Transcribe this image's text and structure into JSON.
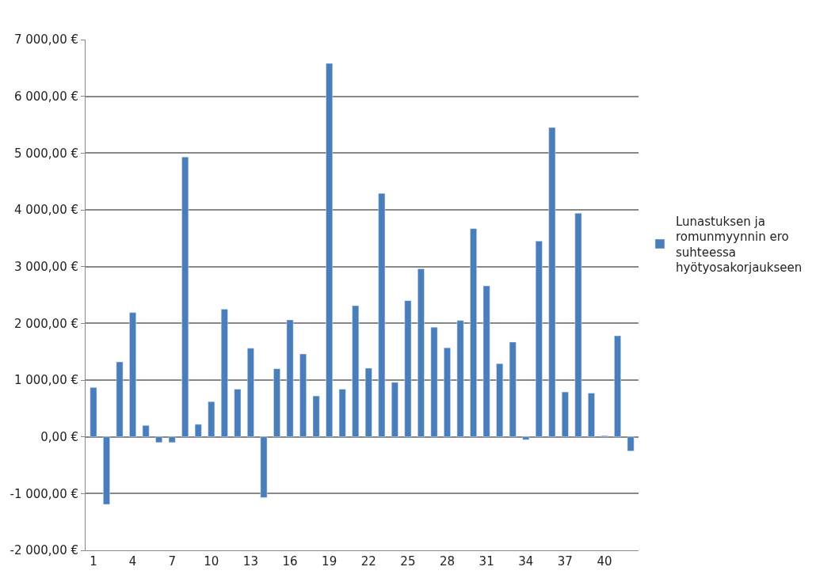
{
  "chart_data": {
    "type": "bar",
    "categories": [
      "1",
      null,
      null,
      "4",
      null,
      null,
      "7",
      null,
      null,
      "10",
      null,
      null,
      "13",
      null,
      null,
      "16",
      null,
      null,
      "19",
      null,
      null,
      "22",
      null,
      null,
      "25",
      null,
      null,
      "28",
      null,
      null,
      "31",
      null,
      null,
      "34",
      null,
      null,
      "37",
      null,
      null,
      "40",
      null,
      null
    ],
    "series": [
      {
        "name": "Lunastuksen ja romunmyynnin ero suhteessa hyötyosakorjaukseen",
        "color": "#4a7ebb",
        "values": [
          870,
          -1190,
          1320,
          2190,
          200,
          -100,
          -100,
          4930,
          220,
          620,
          2250,
          840,
          1560,
          -1070,
          1200,
          2060,
          1460,
          720,
          6580,
          840,
          2310,
          1210,
          4290,
          960,
          2400,
          2960,
          1930,
          1570,
          2050,
          3670,
          2660,
          1290,
          1670,
          -50,
          3450,
          5450,
          790,
          3940,
          770,
          20,
          1780,
          -250
        ]
      }
    ],
    "ylim": [
      -2000,
      7000
    ],
    "yticks": [
      {
        "value": -2000,
        "label": "-2 000,00 €"
      },
      {
        "value": -1000,
        "label": "-1 000,00 €"
      },
      {
        "value": 0,
        "label": "0,00 €"
      },
      {
        "value": 1000,
        "label": "1 000,00 €"
      },
      {
        "value": 2000,
        "label": "2 000,00 €"
      },
      {
        "value": 3000,
        "label": "3 000,00 €"
      },
      {
        "value": 4000,
        "label": "4 000,00 €"
      },
      {
        "value": 5000,
        "label": "5 000,00 €"
      },
      {
        "value": 6000,
        "label": "6 000,00 €"
      },
      {
        "value": 7000,
        "label": "7 000,00 €"
      }
    ],
    "grid": "y",
    "legend": "right"
  }
}
